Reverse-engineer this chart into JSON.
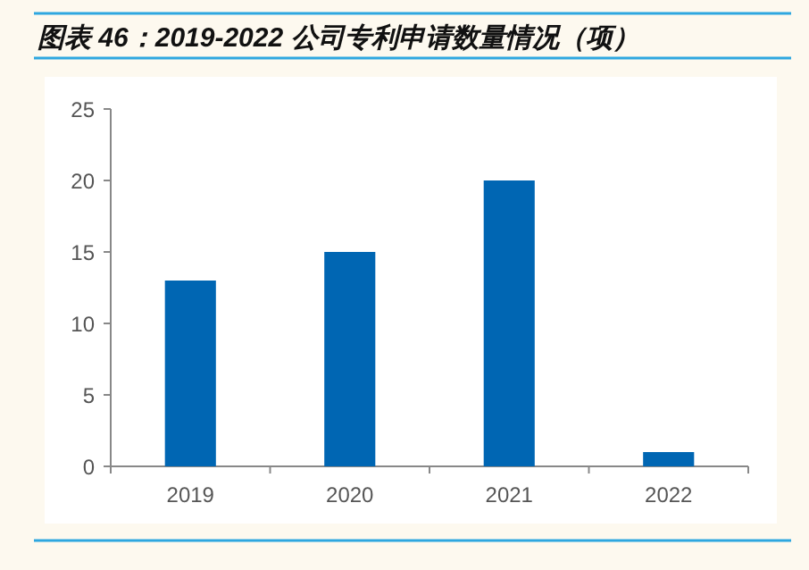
{
  "chart_data": {
    "type": "bar",
    "title": "图表 46：2019-2022 公司专利申请数量情况（项）",
    "categories": [
      "2019",
      "2020",
      "2021",
      "2022"
    ],
    "values": [
      13,
      15,
      20,
      1
    ],
    "color": "#0066b3",
    "ylim": [
      0,
      25
    ],
    "yticks": [
      0,
      5,
      10,
      15,
      20,
      25
    ]
  }
}
